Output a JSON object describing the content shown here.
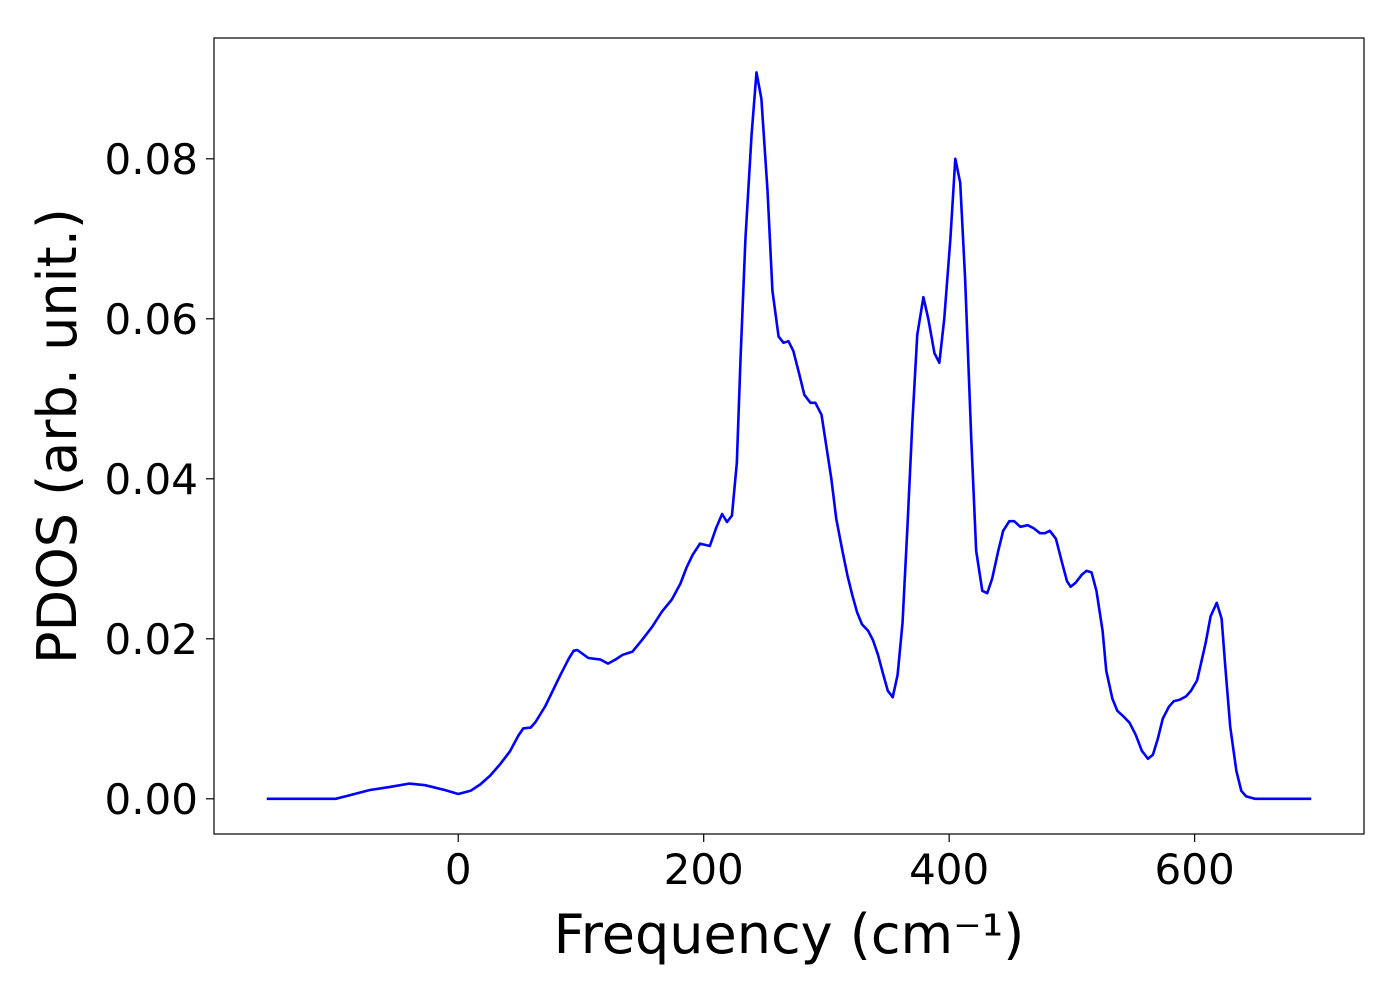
{
  "chart_data": {
    "type": "line",
    "xlabel": "Frequency (cm⁻¹)",
    "ylabel": "PDOS (arb. unit.)",
    "xlim": [
      -199,
      738
    ],
    "ylim": [
      -0.0044,
      0.0951
    ],
    "xticks": [
      0,
      200,
      400,
      600
    ],
    "yticks": [
      {
        "value": 0,
        "label": "0.00"
      },
      {
        "value": 0.02,
        "label": "0.02"
      },
      {
        "value": 0.04,
        "label": "0.04"
      },
      {
        "value": 0.06,
        "label": "0.06"
      },
      {
        "value": 0.08,
        "label": "0.08"
      }
    ],
    "grid": false,
    "series": [
      {
        "color": "#0000ff",
        "x": [
          -156,
          -100,
          -92,
          -72,
          -55,
          -40,
          -27,
          -11,
          0,
          10,
          18,
          26,
          34,
          42,
          49,
          53,
          59,
          63,
          71,
          83,
          90,
          94,
          97,
          106,
          116,
          122,
          128,
          134,
          142,
          150,
          158,
          166,
          174,
          181,
          186,
          191,
          197,
          205,
          210,
          215,
          219,
          223,
          227,
          230,
          234,
          239,
          243,
          247,
          252,
          256,
          261,
          265,
          269,
          273,
          278,
          282,
          287,
          291,
          296,
          299,
          304,
          308,
          313,
          317,
          321,
          325,
          329,
          334,
          338,
          342,
          346,
          350,
          354,
          358,
          362,
          366,
          370,
          374,
          379,
          383,
          388,
          392,
          396,
          401,
          405,
          409,
          413,
          418,
          422,
          427,
          431,
          435,
          440,
          444,
          449,
          453,
          458,
          464,
          469,
          474,
          478,
          482,
          487,
          492,
          496,
          499,
          503,
          508,
          512,
          516,
          520,
          525,
          528,
          533,
          537,
          542,
          547,
          552,
          557,
          562,
          566,
          570,
          574,
          579,
          583,
          588,
          593,
          597,
          602,
          605,
          609,
          613,
          618,
          622,
          625,
          629,
          634,
          638,
          642,
          649,
          695
        ],
        "values": [
          0,
          0,
          0.0003,
          0.0011,
          0.0015,
          0.0019,
          0.0017,
          0.0011,
          0.0006,
          0.001,
          0.0018,
          0.0029,
          0.0043,
          0.0059,
          0.0079,
          0.0088,
          0.0089,
          0.0096,
          0.0116,
          0.0154,
          0.0175,
          0.0185,
          0.0186,
          0.0176,
          0.0174,
          0.0169,
          0.0174,
          0.018,
          0.0184,
          0.0199,
          0.0215,
          0.0234,
          0.0249,
          0.0269,
          0.0289,
          0.0305,
          0.0319,
          0.0316,
          0.0338,
          0.0356,
          0.0346,
          0.0354,
          0.042,
          0.055,
          0.07,
          0.083,
          0.0908,
          0.0875,
          0.076,
          0.0635,
          0.0578,
          0.057,
          0.0572,
          0.056,
          0.053,
          0.0505,
          0.0495,
          0.0495,
          0.048,
          0.045,
          0.04,
          0.035,
          0.031,
          0.028,
          0.0255,
          0.0233,
          0.0218,
          0.021,
          0.0198,
          0.018,
          0.0157,
          0.0135,
          0.0127,
          0.0155,
          0.022,
          0.034,
          0.047,
          0.058,
          0.0627,
          0.06,
          0.0557,
          0.0545,
          0.06,
          0.07,
          0.08,
          0.077,
          0.065,
          0.045,
          0.031,
          0.026,
          0.0257,
          0.0275,
          0.031,
          0.0335,
          0.0347,
          0.0347,
          0.034,
          0.0342,
          0.0338,
          0.0332,
          0.0332,
          0.0335,
          0.0325,
          0.0295,
          0.0272,
          0.0265,
          0.027,
          0.028,
          0.0285,
          0.0283,
          0.026,
          0.021,
          0.016,
          0.0125,
          0.011,
          0.0103,
          0.0095,
          0.008,
          0.006,
          0.005,
          0.0055,
          0.0075,
          0.01,
          0.0115,
          0.0122,
          0.0124,
          0.0128,
          0.0135,
          0.0148,
          0.0168,
          0.0195,
          0.0228,
          0.0245,
          0.0225,
          0.0165,
          0.009,
          0.0035,
          0.001,
          0.0003,
          0,
          0
        ]
      }
    ]
  }
}
